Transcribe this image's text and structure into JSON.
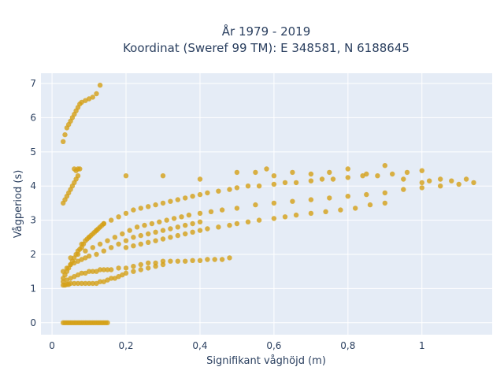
{
  "chart_data": {
    "type": "scatter",
    "title": [
      "År 1979 - 2019",
      "Koordinat (Sweref 99 TM): E 348581, N 6188645"
    ],
    "xlabel": "Signifikant våghöjd (m)",
    "ylabel": "Vågperiod (s)",
    "xlim": [
      -0.03,
      1.19
    ],
    "ylim": [
      -0.35,
      7.3
    ],
    "x_ticks": [
      {
        "value": 0,
        "label": "0"
      },
      {
        "value": 0.2,
        "label": "0,2"
      },
      {
        "value": 0.4,
        "label": "0,4"
      },
      {
        "value": 0.6,
        "label": "0,6"
      },
      {
        "value": 0.8,
        "label": "0,8"
      },
      {
        "value": 1,
        "label": "1"
      }
    ],
    "y_ticks": [
      {
        "value": 0,
        "label": "0"
      },
      {
        "value": 1,
        "label": "1"
      },
      {
        "value": 2,
        "label": "2"
      },
      {
        "value": 3,
        "label": "3"
      },
      {
        "value": 4,
        "label": "4"
      },
      {
        "value": 5,
        "label": "5"
      },
      {
        "value": 6,
        "label": "6"
      },
      {
        "value": 7,
        "label": "7"
      }
    ],
    "grid": true,
    "legend": "none",
    "colors": {
      "marker": "#d4a017",
      "plot_bg": "#e5ecf6",
      "grid": "#ffffff",
      "text": "#2a3f5f"
    },
    "series": [
      {
        "x": [
          0.03,
          0.035,
          0.04,
          0.045,
          0.05,
          0.055,
          0.06,
          0.065,
          0.07,
          0.075,
          0.08,
          0.085,
          0.09,
          0.095,
          0.1,
          0.105,
          0.11,
          0.115,
          0.12,
          0.125,
          0.13,
          0.135,
          0.14,
          0.145,
          0.15,
          0.03,
          0.035,
          0.04,
          0.045,
          0.05,
          0.06,
          0.07,
          0.08,
          0.09,
          0.1,
          0.11,
          0.12,
          0.13,
          0.14,
          0.15,
          0.16,
          0.17,
          0.18,
          0.19,
          0.2,
          0.22,
          0.24,
          0.26,
          0.28,
          0.3,
          0.03,
          0.04,
          0.05,
          0.06,
          0.07,
          0.08,
          0.09,
          0.1,
          0.12,
          0.14,
          0.16,
          0.18,
          0.2,
          0.22,
          0.24,
          0.26,
          0.28,
          0.3,
          0.32,
          0.34,
          0.36,
          0.38,
          0.4,
          0.05,
          0.07,
          0.09,
          0.11,
          0.13,
          0.15,
          0.17,
          0.19,
          0.21,
          0.23,
          0.25,
          0.27,
          0.29,
          0.31,
          0.33,
          0.35,
          0.37,
          0.4,
          0.43,
          0.46,
          0.5,
          0.55,
          0.6,
          0.65,
          0.7,
          0.75,
          0.8,
          0.85,
          0.9,
          0.95,
          1.0,
          1.05,
          1.1,
          1.14,
          0.08,
          0.1,
          0.12,
          0.14,
          0.16,
          0.18,
          0.2,
          0.22,
          0.24,
          0.26,
          0.28,
          0.3,
          0.32,
          0.34,
          0.36,
          0.38,
          0.4,
          0.42,
          0.45,
          0.48,
          0.5,
          0.53,
          0.56,
          0.6,
          0.63,
          0.66,
          0.7,
          0.73,
          0.76,
          0.8,
          0.84,
          0.88,
          0.92,
          0.96,
          1.0,
          0.2,
          0.22,
          0.24,
          0.26,
          0.28,
          0.3,
          0.32,
          0.34,
          0.36,
          0.38,
          0.4,
          0.42,
          0.45,
          0.48,
          0.5,
          0.53,
          0.56,
          0.6,
          0.63,
          0.66,
          0.7,
          0.74,
          0.78,
          0.82,
          0.86,
          0.9,
          0.03,
          0.035,
          0.04,
          0.045,
          0.05,
          0.055,
          0.06,
          0.065,
          0.07,
          0.075,
          0.08,
          0.085,
          0.09,
          0.095,
          0.1,
          0.105,
          0.11,
          0.115,
          0.12,
          0.125,
          0.13,
          0.135,
          0.14,
          0.03,
          0.04,
          0.05,
          0.06,
          0.07,
          0.08,
          0.09,
          0.1,
          0.11,
          0.12,
          0.13,
          0.14,
          0.15,
          0.16,
          0.18,
          0.2,
          0.22,
          0.24,
          0.26,
          0.28,
          0.3,
          0.32,
          0.34,
          0.36,
          0.38,
          0.4,
          0.42,
          0.44,
          0.46,
          0.48,
          0.03,
          0.035,
          0.04,
          0.045,
          0.05,
          0.055,
          0.06,
          0.065,
          0.07,
          0.075,
          0.08,
          0.09,
          0.1,
          0.11,
          0.12,
          0.13,
          0.03,
          0.035,
          0.04,
          0.045,
          0.05,
          0.055,
          0.06,
          0.065,
          0.07,
          0.075,
          0.2,
          0.3,
          0.4,
          0.5,
          0.55,
          0.58,
          0.6,
          0.65,
          0.7,
          0.75,
          0.8,
          0.85,
          0.9,
          0.95,
          1.0,
          1.02,
          1.05,
          1.08,
          1.12,
          0.06,
          0.065,
          0.07
        ],
        "y": [
          0.0,
          0.0,
          0.0,
          0.0,
          0.0,
          0.0,
          0.0,
          0.0,
          0.0,
          0.0,
          0.0,
          0.0,
          0.0,
          0.0,
          0.0,
          0.0,
          0.0,
          0.0,
          0.0,
          0.0,
          0.0,
          0.0,
          0.0,
          0.0,
          0.0,
          1.1,
          1.1,
          1.12,
          1.12,
          1.15,
          1.15,
          1.15,
          1.15,
          1.15,
          1.15,
          1.15,
          1.15,
          1.2,
          1.2,
          1.25,
          1.3,
          1.3,
          1.35,
          1.4,
          1.45,
          1.5,
          1.55,
          1.6,
          1.65,
          1.7,
          1.5,
          1.6,
          1.7,
          1.75,
          1.8,
          1.85,
          1.9,
          1.95,
          2.0,
          2.1,
          2.2,
          2.3,
          2.4,
          2.5,
          2.55,
          2.6,
          2.65,
          2.7,
          2.75,
          2.8,
          2.85,
          2.9,
          2.95,
          1.9,
          2.0,
          2.1,
          2.2,
          2.3,
          2.4,
          2.5,
          2.6,
          2.7,
          2.8,
          2.85,
          2.9,
          2.95,
          3.0,
          3.05,
          3.1,
          3.15,
          3.2,
          3.25,
          3.3,
          3.35,
          3.45,
          3.5,
          3.55,
          3.6,
          3.65,
          3.7,
          3.75,
          3.8,
          3.9,
          3.95,
          4.0,
          4.05,
          4.1,
          2.3,
          2.5,
          2.7,
          2.9,
          3.0,
          3.1,
          3.2,
          3.3,
          3.35,
          3.4,
          3.45,
          3.5,
          3.55,
          3.6,
          3.65,
          3.7,
          3.75,
          3.8,
          3.85,
          3.9,
          3.95,
          4.0,
          4.0,
          4.05,
          4.1,
          4.1,
          4.15,
          4.2,
          4.2,
          4.25,
          4.3,
          4.3,
          4.35,
          4.4,
          4.45,
          2.2,
          2.25,
          2.3,
          2.35,
          2.4,
          2.45,
          2.5,
          2.55,
          2.6,
          2.65,
          2.7,
          2.75,
          2.8,
          2.85,
          2.9,
          2.95,
          3.0,
          3.05,
          3.1,
          3.15,
          3.2,
          3.25,
          3.3,
          3.35,
          3.45,
          3.5,
          1.3,
          1.4,
          1.5,
          1.6,
          1.7,
          1.8,
          1.9,
          2.0,
          2.1,
          2.15,
          2.2,
          2.3,
          2.4,
          2.45,
          2.5,
          2.55,
          2.6,
          2.65,
          2.7,
          2.75,
          2.8,
          2.85,
          2.9,
          1.2,
          1.25,
          1.3,
          1.35,
          1.4,
          1.45,
          1.45,
          1.5,
          1.5,
          1.5,
          1.55,
          1.55,
          1.55,
          1.55,
          1.6,
          1.6,
          1.65,
          1.7,
          1.75,
          1.75,
          1.8,
          1.8,
          1.8,
          1.8,
          1.82,
          1.82,
          1.85,
          1.85,
          1.85,
          1.9,
          5.3,
          5.5,
          5.7,
          5.8,
          5.9,
          6.0,
          6.1,
          6.2,
          6.3,
          6.4,
          6.45,
          6.5,
          6.55,
          6.6,
          6.7,
          6.95,
          3.5,
          3.6,
          3.7,
          3.8,
          3.9,
          4.0,
          4.1,
          4.2,
          4.3,
          4.5,
          4.3,
          4.3,
          4.2,
          4.4,
          4.4,
          4.5,
          4.3,
          4.4,
          4.35,
          4.4,
          4.5,
          4.35,
          4.6,
          4.2,
          4.1,
          4.15,
          4.2,
          4.15,
          4.2,
          4.5,
          4.45,
          4.5
        ]
      }
    ]
  }
}
